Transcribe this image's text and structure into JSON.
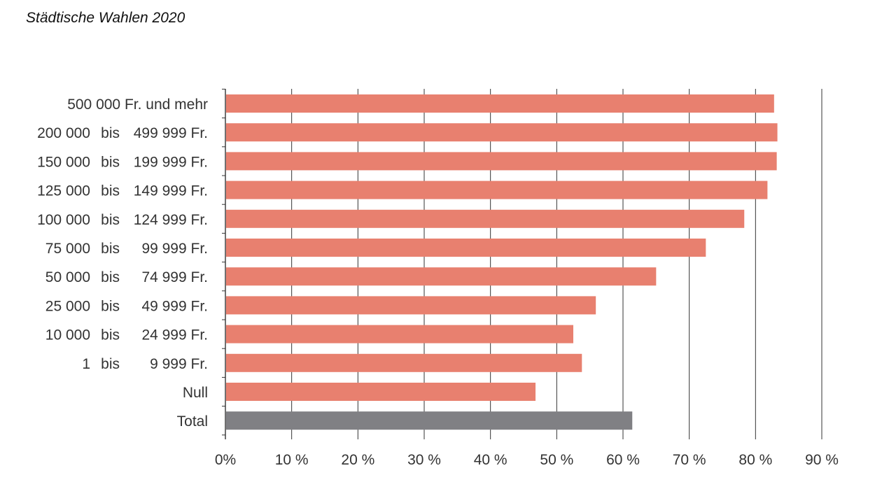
{
  "chart_data": {
    "type": "bar",
    "orientation": "horizontal",
    "title": "Städtische Wahlen 2020",
    "xlabel": "",
    "ylabel": "",
    "xlim": [
      0,
      90
    ],
    "x_ticks": [
      0,
      10,
      20,
      30,
      40,
      50,
      60,
      70,
      80,
      90
    ],
    "x_tick_labels": [
      "0%",
      "10 %",
      "20 %",
      "30 %",
      "40 %",
      "50 %",
      "60 %",
      "70 %",
      "80 %",
      "90 %"
    ],
    "grid": "vertical",
    "legend": "none",
    "colors": {
      "bar": "#e8806f",
      "total": "#808084",
      "grid": "#333333"
    },
    "categories": [
      {
        "from": "500 000",
        "mid": "",
        "to": "Fr. und mehr",
        "text": "500 000 Fr. und mehr",
        "value": 82.8,
        "highlight": false
      },
      {
        "from": "200 000",
        "mid": "bis",
        "to": "499 999 Fr.",
        "text": "200 000 bis 499 999 Fr.",
        "value": 83.3,
        "highlight": false
      },
      {
        "from": "150 000",
        "mid": "bis",
        "to": "199 999 Fr.",
        "text": "150 000 bis 199 999 Fr.",
        "value": 83.2,
        "highlight": false
      },
      {
        "from": "125 000",
        "mid": "bis",
        "to": "149 999 Fr.",
        "text": "125 000 bis 149 999 Fr.",
        "value": 81.8,
        "highlight": false
      },
      {
        "from": "100 000",
        "mid": "bis",
        "to": "124 999 Fr.",
        "text": "100 000 bis 124 999 Fr.",
        "value": 78.3,
        "highlight": false
      },
      {
        "from": "75 000",
        "mid": "bis",
        "to": "99 999 Fr.",
        "text": "75 000 bis 99 999 Fr.",
        "value": 72.5,
        "highlight": false
      },
      {
        "from": "50 000",
        "mid": "bis",
        "to": "74 999 Fr.",
        "text": "50 000 bis 74 999 Fr.",
        "value": 65.0,
        "highlight": false
      },
      {
        "from": "25 000",
        "mid": "bis",
        "to": "49 999 Fr.",
        "text": "25 000 bis 49 999 Fr.",
        "value": 55.9,
        "highlight": false
      },
      {
        "from": "10 000",
        "mid": "bis",
        "to": "24 999 Fr.",
        "text": "10 000 bis 24 999 Fr.",
        "value": 52.5,
        "highlight": false
      },
      {
        "from": "1",
        "mid": "bis",
        "to": "9 999 Fr.",
        "text": "1 bis 9 999 Fr.",
        "value": 53.8,
        "highlight": false
      },
      {
        "from": "",
        "mid": "",
        "to": "Null",
        "text": "Null",
        "value": 46.8,
        "highlight": false
      },
      {
        "from": "",
        "mid": "",
        "to": "Total",
        "text": "Total",
        "value": 61.4,
        "highlight": true
      }
    ]
  }
}
